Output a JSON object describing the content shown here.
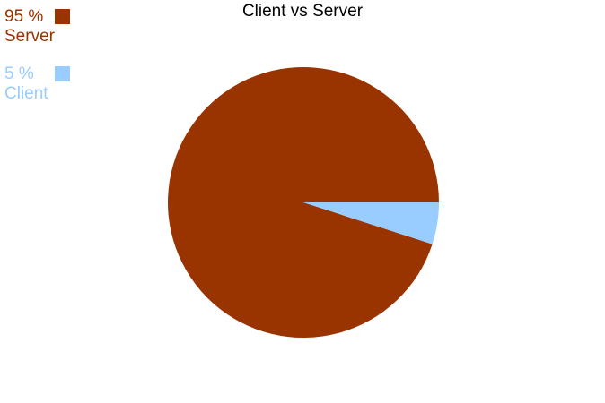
{
  "chart_data": {
    "type": "pie",
    "title": "Client vs Server",
    "slices": [
      {
        "label": "Server",
        "percent_label": "95 %",
        "value": 95,
        "color": "#993300"
      },
      {
        "label": "Client",
        "percent_label": "5 %",
        "value": 5,
        "color": "#99ccff"
      }
    ],
    "legend_position": "top-left"
  }
}
